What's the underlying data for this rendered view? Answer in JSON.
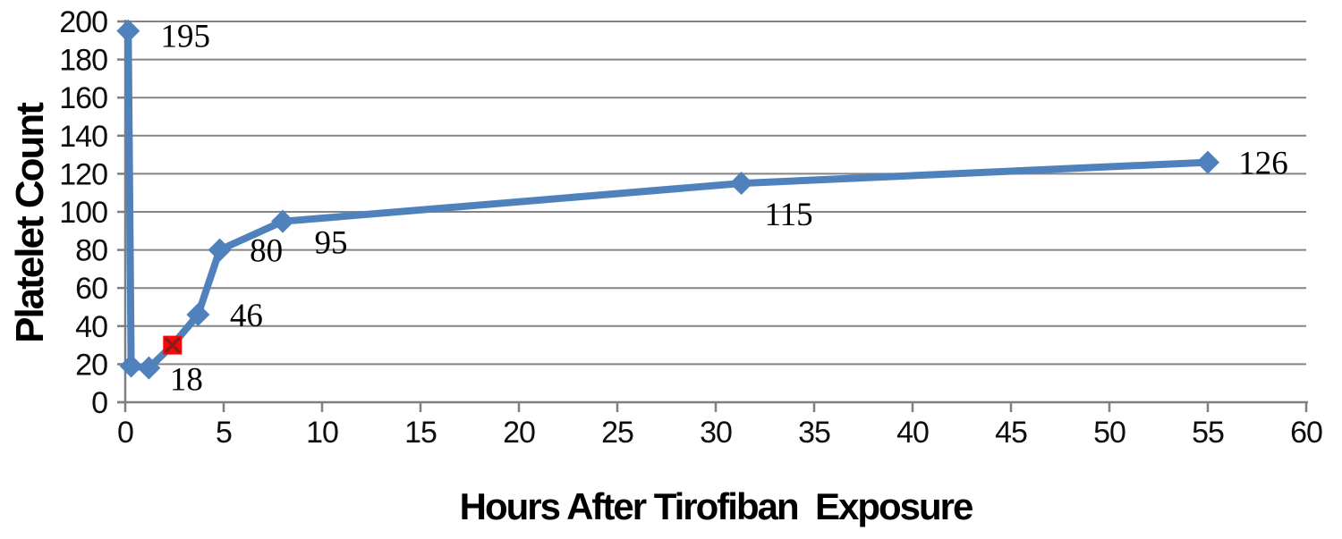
{
  "chart_data": {
    "type": "line",
    "title": "",
    "xlabel": "Hours After Tirofiban  Exposure",
    "ylabel": "Platelet Count",
    "xlim": [
      0,
      60
    ],
    "ylim": [
      0,
      200
    ],
    "x_ticks": [
      0,
      5,
      10,
      15,
      20,
      25,
      30,
      35,
      40,
      45,
      50,
      55,
      60
    ],
    "y_ticks": [
      0,
      20,
      40,
      60,
      80,
      100,
      120,
      140,
      160,
      180,
      200
    ],
    "grid": "horizontal",
    "legend": "none",
    "colors": {
      "series": "#4f81bd",
      "event_marker_fill": "#fb0707",
      "event_marker_cross": "#8e1b1b",
      "gridline": "#848484",
      "axis": "#7f7f7f",
      "tick_text": "#0d0d0d",
      "label_text": "#000000"
    },
    "series": [
      {
        "name": "platelet-count",
        "marker": "diamond",
        "points": [
          {
            "x": 0.15,
            "y": 195,
            "label": "195",
            "label_offset": [
              64,
              5
            ]
          },
          {
            "x": 0.3,
            "y": 19
          },
          {
            "x": 1.2,
            "y": 18,
            "label": "18",
            "label_offset": [
              42,
              12
            ]
          },
          {
            "x": 2.4,
            "y": 30,
            "marker": "red-x-square"
          },
          {
            "x": 3.7,
            "y": 46,
            "label": "46",
            "label_offset": [
              54,
              0
            ]
          },
          {
            "x": 4.8,
            "y": 80,
            "label": "80",
            "label_offset": [
              52,
              0
            ]
          },
          {
            "x": 8.0,
            "y": 95,
            "label": "95",
            "label_offset": [
              54,
              23
            ]
          },
          {
            "x": 31.3,
            "y": 115,
            "label": "115",
            "label_offset": [
              53,
              34
            ]
          },
          {
            "x": 55.0,
            "y": 126,
            "label": "126",
            "label_offset": [
              62,
              0
            ]
          }
        ]
      }
    ]
  }
}
